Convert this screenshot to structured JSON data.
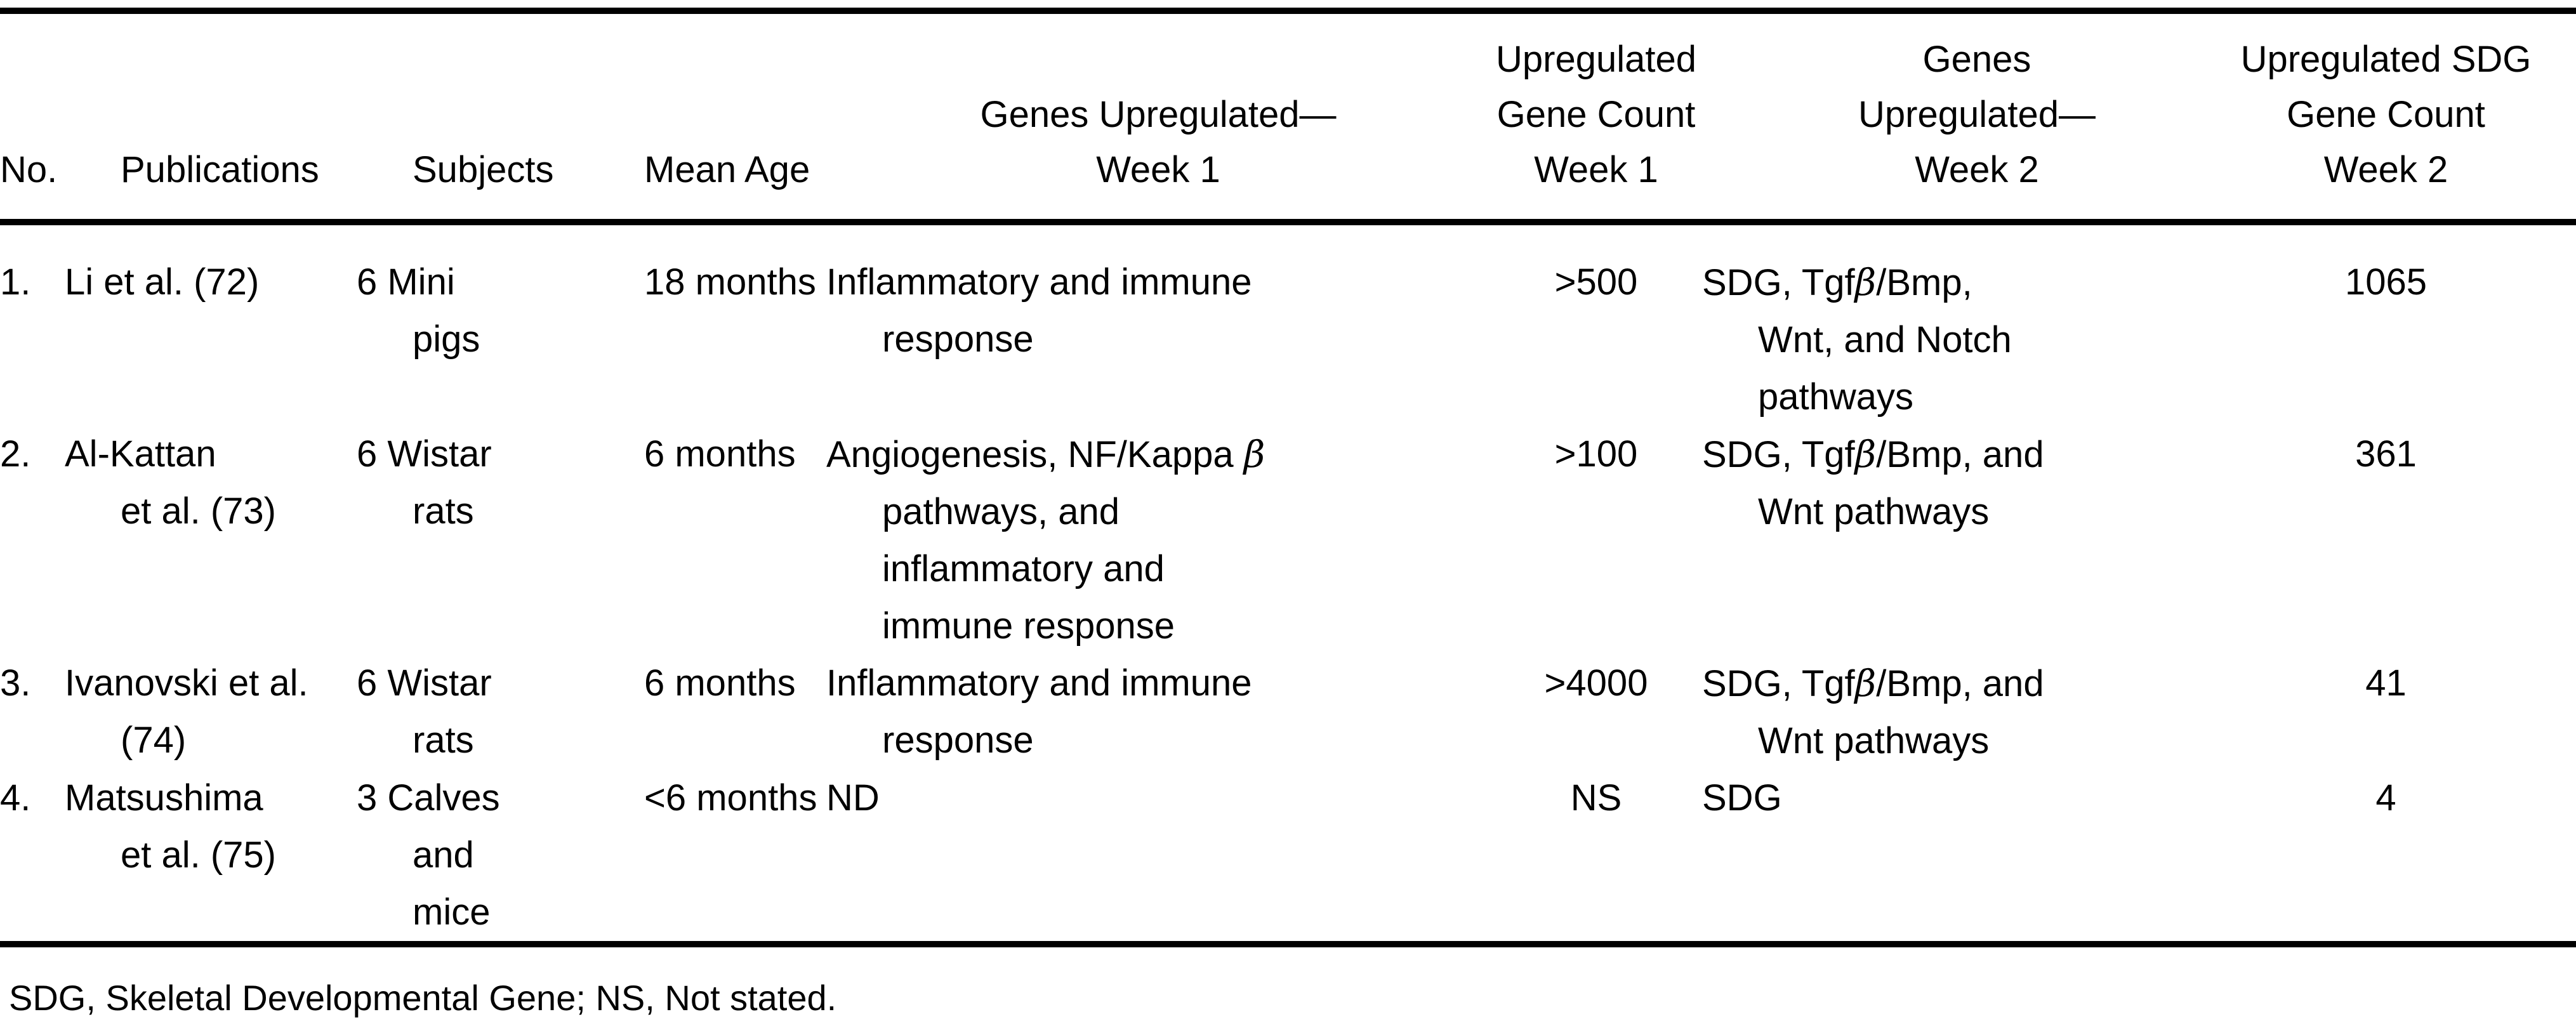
{
  "table": {
    "columns": [
      {
        "label": "No."
      },
      {
        "label": "Publications"
      },
      {
        "label": "Subjects"
      },
      {
        "label": "Mean Age"
      },
      {
        "label": "Genes Upregulated—\nWeek 1"
      },
      {
        "label": "Upregulated\nGene Count\nWeek 1"
      },
      {
        "label": "Genes\nUpregulated—\nWeek 2"
      },
      {
        "label": "Upregulated SDG\nGene Count\nWeek 2"
      }
    ],
    "rows": [
      [
        "1.",
        "Li et al. (72)",
        "6 Mini\npigs",
        "18 months",
        "Inflammatory and immune\nresponse",
        ">500",
        "SDG, Tgfβ/Bmp,\nWnt, and Notch\npathways",
        "1065"
      ],
      [
        "2.",
        "Al-Kattan\net al. (73)",
        "6 Wistar\nrats",
        "6 months",
        "Angiogenesis, NF/Kappa β\npathways, and\ninflammatory and\nimmune response",
        ">100",
        "SDG, Tgfβ/Bmp, and\nWnt pathways",
        "361"
      ],
      [
        "3.",
        "Ivanovski et al.\n(74)",
        "6 Wistar\nrats",
        "6 months",
        "Inflammatory and immune\nresponse",
        ">4000",
        "SDG, Tgfβ/Bmp, and\nWnt pathways",
        "41"
      ],
      [
        "4.",
        "Matsushima\net al. (75)",
        "3 Calves\nand\nmice",
        "<6 months",
        "ND",
        "NS",
        "SDG",
        "4"
      ]
    ]
  },
  "footnote": "SDG, Skeletal Developmental Gene; NS, Not stated."
}
